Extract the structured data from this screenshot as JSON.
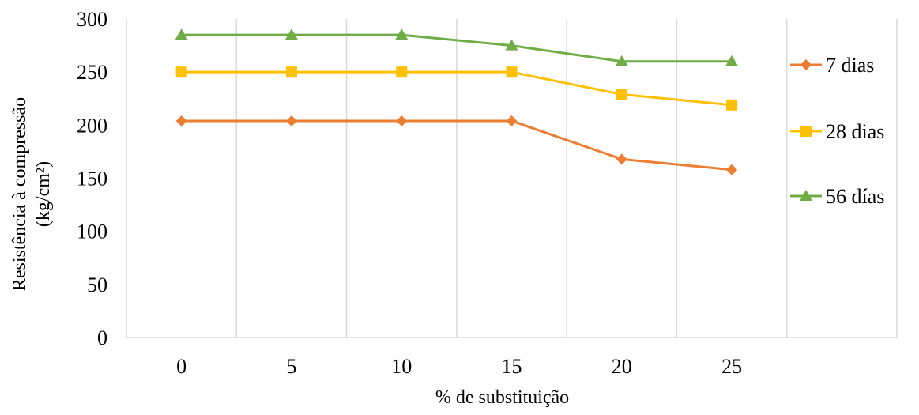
{
  "chart_data": {
    "type": "line",
    "title": "",
    "xlabel": "% de substituição",
    "ylabel_lines": [
      "Resistência à compressão",
      "(kg/cm²)"
    ],
    "x": [
      0,
      5,
      10,
      15,
      20,
      25
    ],
    "x_tick_labels": [
      "0",
      "5",
      "10",
      "15",
      "20",
      "25"
    ],
    "y_tick_values": [
      0,
      50,
      100,
      150,
      200,
      250,
      300
    ],
    "y_tick_labels": [
      "0",
      "50",
      "100",
      "150",
      "200",
      "250",
      "300"
    ],
    "ylim": [
      0,
      300
    ],
    "grid": "vertical",
    "legend_position": "right",
    "series": [
      {
        "name": "7 dias",
        "color": "#ED7D31",
        "marker": "diamond",
        "values": [
          204,
          204,
          204,
          204,
          168,
          158
        ]
      },
      {
        "name": "28 dias",
        "color": "#FFC000",
        "marker": "square",
        "values": [
          250,
          250,
          250,
          250,
          229,
          219
        ]
      },
      {
        "name": "56 días",
        "color": "#70AD47",
        "marker": "triangle",
        "values": [
          285,
          285,
          285,
          275,
          260,
          260
        ]
      }
    ]
  }
}
